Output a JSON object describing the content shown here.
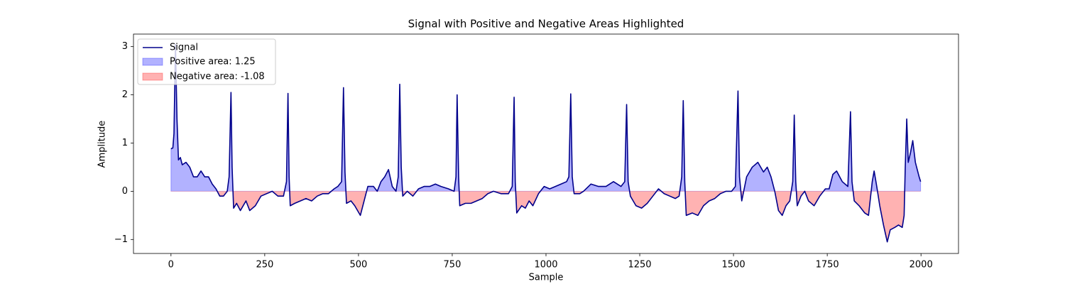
{
  "chart_data": {
    "type": "line",
    "title": "Signal with Positive and Negative Areas Highlighted",
    "xlabel": "Sample",
    "ylabel": "Amplitude",
    "legend": "upper left",
    "xlim": [
      -100,
      2100
    ],
    "ylim": [
      -1.29,
      3.26
    ],
    "xticks": [
      0,
      250,
      500,
      750,
      1000,
      1250,
      1500,
      1750,
      2000
    ],
    "yticks": [
      {
        "value": -1,
        "label": "−1"
      },
      0,
      1,
      2,
      3
    ],
    "x": [
      0,
      5,
      8,
      12,
      16,
      20,
      25,
      30,
      40,
      50,
      60,
      70,
      80,
      90,
      100,
      110,
      120,
      130,
      140,
      150,
      155,
      160,
      163,
      167,
      175,
      185,
      200,
      210,
      225,
      240,
      255,
      270,
      285,
      300,
      308,
      312,
      315,
      318,
      330,
      345,
      360,
      375,
      390,
      405,
      420,
      435,
      445,
      455,
      460,
      464,
      468,
      480,
      490,
      505,
      515,
      525,
      540,
      550,
      560,
      570,
      580,
      590,
      600,
      606,
      610,
      614,
      618,
      630,
      645,
      660,
      675,
      690,
      705,
      720,
      740,
      755,
      760,
      763,
      767,
      770,
      785,
      800,
      815,
      830,
      845,
      860,
      880,
      900,
      910,
      915,
      918,
      922,
      935,
      945,
      955,
      965,
      980,
      995,
      1010,
      1025,
      1040,
      1055,
      1061,
      1066,
      1070,
      1075,
      1090,
      1100,
      1120,
      1140,
      1160,
      1180,
      1200,
      1210,
      1215,
      1219,
      1225,
      1240,
      1255,
      1270,
      1285,
      1300,
      1315,
      1330,
      1345,
      1355,
      1362,
      1366,
      1370,
      1374,
      1390,
      1405,
      1420,
      1435,
      1450,
      1465,
      1480,
      1495,
      1505,
      1512,
      1516,
      1522,
      1535,
      1550,
      1565,
      1580,
      1590,
      1600,
      1610,
      1620,
      1630,
      1640,
      1650,
      1658,
      1662,
      1666,
      1670,
      1680,
      1690,
      1700,
      1715,
      1730,
      1745,
      1755,
      1765,
      1775,
      1790,
      1805,
      1812,
      1816,
      1822,
      1835,
      1850,
      1860,
      1870,
      1875,
      1882,
      1890,
      1900,
      1910,
      1918,
      1930,
      1940,
      1950,
      1955,
      1958,
      1962,
      1966,
      1972,
      1978,
      1985,
      1995,
      1999
    ],
    "series": [
      {
        "name": "Signal",
        "color": "#00008b",
        "values": [
          0.88,
          0.9,
          1.2,
          3.05,
          1.5,
          0.65,
          0.7,
          0.55,
          0.6,
          0.5,
          0.3,
          0.3,
          0.42,
          0.3,
          0.3,
          0.15,
          0.05,
          -0.1,
          -0.1,
          0,
          0.3,
          2.05,
          0.5,
          -0.35,
          -0.25,
          -0.4,
          -0.2,
          -0.4,
          -0.3,
          -0.1,
          -0.05,
          0.0,
          -0.1,
          -0.1,
          0.2,
          2.03,
          0.3,
          -0.3,
          -0.25,
          -0.2,
          -0.15,
          -0.2,
          -0.1,
          -0.05,
          -0.05,
          0.05,
          0.1,
          0.2,
          2.15,
          0.4,
          -0.25,
          -0.2,
          -0.3,
          -0.5,
          -0.2,
          0.1,
          0.1,
          0.0,
          0.2,
          0.3,
          0.45,
          0.1,
          0,
          0.3,
          2.22,
          0.5,
          -0.1,
          0.0,
          -0.1,
          0.05,
          0.1,
          0.1,
          0.15,
          0.1,
          0.05,
          0,
          0.3,
          2.0,
          0.3,
          -0.3,
          -0.25,
          -0.25,
          -0.2,
          -0.15,
          -0.05,
          0,
          -0.05,
          -0.05,
          0.1,
          1.95,
          0.2,
          -0.45,
          -0.3,
          -0.35,
          -0.2,
          -0.3,
          -0.05,
          0.1,
          0.05,
          0.1,
          0.15,
          0.2,
          0.3,
          2.02,
          0.3,
          -0.05,
          -0.05,
          0.0,
          0.15,
          0.1,
          0.1,
          0.2,
          0.1,
          0.2,
          1.8,
          0.2,
          -0.1,
          -0.3,
          -0.35,
          -0.25,
          -0.1,
          0.05,
          -0.05,
          -0.1,
          -0.15,
          -0.1,
          0.3,
          1.88,
          0.2,
          -0.5,
          -0.45,
          -0.5,
          -0.3,
          -0.2,
          -0.15,
          -0.05,
          0.0,
          0.0,
          0.1,
          2.08,
          0.3,
          -0.2,
          0.3,
          0.5,
          0.6,
          0.4,
          0.5,
          0.3,
          0.0,
          -0.4,
          -0.5,
          -0.3,
          -0.2,
          0.2,
          1.58,
          0.2,
          -0.3,
          -0.1,
          0.0,
          -0.2,
          -0.3,
          -0.1,
          0.05,
          0.05,
          0.35,
          0.42,
          0.2,
          0.1,
          1.65,
          0.2,
          -0.2,
          -0.3,
          -0.45,
          -0.5,
          0.2,
          0.42,
          0.1,
          -0.3,
          -0.7,
          -1.05,
          -0.8,
          -0.75,
          -0.7,
          -0.75,
          -0.5,
          0.5,
          1.5,
          0.6,
          0.8,
          1.05,
          0.6,
          0.3,
          0.2
        ]
      }
    ],
    "fills": [
      {
        "name": "Positive area: 1.25",
        "color": "#0000ff",
        "alpha": 0.3,
        "side": "positive"
      },
      {
        "name": "Negative area: -1.08",
        "color": "#ff0000",
        "alpha": 0.3,
        "side": "negative"
      }
    ]
  }
}
